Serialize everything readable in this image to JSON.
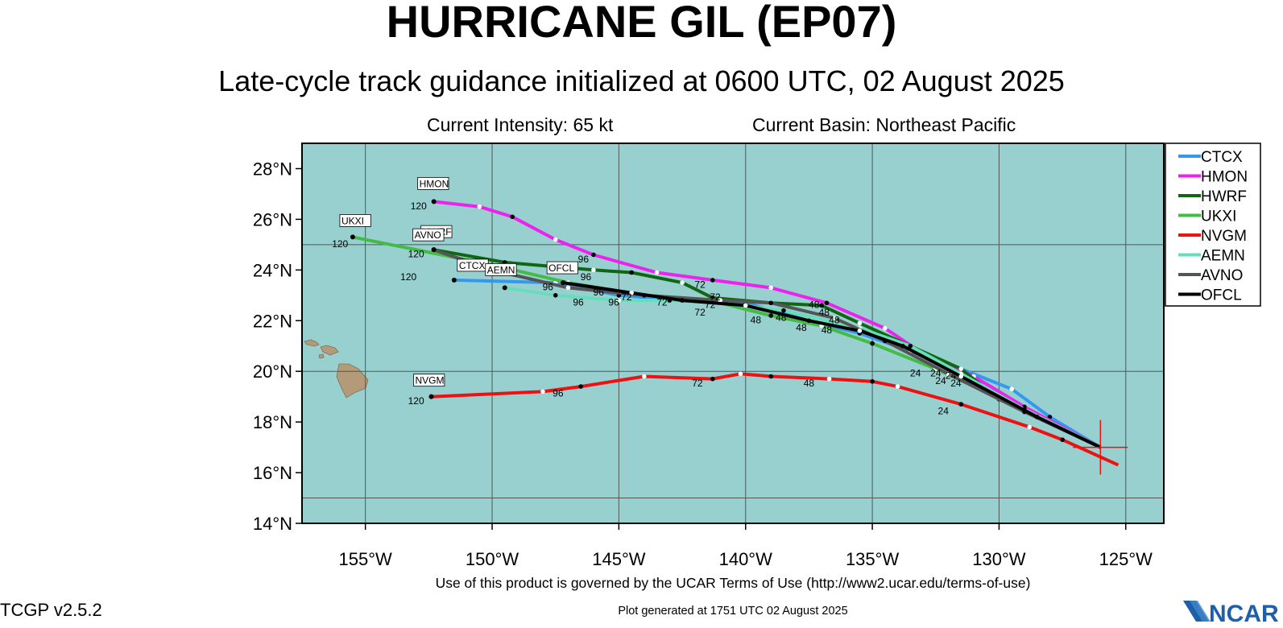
{
  "title": "HURRICANE GIL (EP07)",
  "subtitle": "Late-cycle track guidance initialized at 0600 UTC, 02 August 2025",
  "current_intensity": "Current Intensity: 65 kt",
  "current_basin": "Current Basin: Northeast Pacific",
  "footer": {
    "terms": "Use of this product is governed by the UCAR Terms of Use (http://www2.ucar.edu/terms-of-use)",
    "generated": "Plot generated at 1751 UTC   02 August 2025",
    "version": "TCGP v2.5.2",
    "logo_text": "NCAR"
  },
  "colors": {
    "ocean": "#98cfcf",
    "land": "#b39b7a",
    "grid": "#555555"
  },
  "map": {
    "lon_range": [
      -157.5,
      -123.5
    ],
    "lat_range": [
      14,
      29
    ],
    "lat_ticks": [
      {
        "v": 14,
        "label": "14°N"
      },
      {
        "v": 16,
        "label": "16°N"
      },
      {
        "v": 18,
        "label": "18°N"
      },
      {
        "v": 20,
        "label": "20°N"
      },
      {
        "v": 22,
        "label": "22°N"
      },
      {
        "v": 24,
        "label": "24°N"
      },
      {
        "v": 26,
        "label": "26°N"
      },
      {
        "v": 28,
        "label": "28°N"
      }
    ],
    "lon_ticks": [
      {
        "v": -155,
        "label": "155°W"
      },
      {
        "v": -150,
        "label": "150°W"
      },
      {
        "v": -145,
        "label": "145°W"
      },
      {
        "v": -140,
        "label": "140°W"
      },
      {
        "v": -135,
        "label": "135°W"
      },
      {
        "v": -130,
        "label": "130°W"
      },
      {
        "v": -125,
        "label": "125°W"
      }
    ],
    "storm_position": [
      -126.0,
      17.0
    ]
  },
  "chart_data": {
    "type": "line",
    "series": [
      {
        "name": "CTCX",
        "color": "#3399ee",
        "points": [
          [
            -126,
            17
          ],
          [
            -128,
            18.2
          ],
          [
            -129.5,
            19.3
          ],
          [
            -131.5,
            20.1
          ],
          [
            -133.5,
            20.8
          ],
          [
            -135.5,
            21.5
          ],
          [
            -137.5,
            22.0
          ],
          [
            -140,
            22.7
          ],
          [
            -142.5,
            22.8
          ],
          [
            -145,
            23.0
          ],
          [
            -147.5,
            23.5
          ],
          [
            -151.5,
            23.6
          ]
        ],
        "end_label": "CTCX"
      },
      {
        "name": "HMON",
        "color": "#ee22ee",
        "points": [
          [
            -126,
            17
          ],
          [
            -129,
            18.6
          ],
          [
            -131,
            19.8
          ],
          [
            -133,
            20.7
          ],
          [
            -134.5,
            21.7
          ],
          [
            -136.8,
            22.7
          ],
          [
            -139,
            23.3
          ],
          [
            -141.3,
            23.6
          ],
          [
            -143.5,
            23.9
          ],
          [
            -146,
            24.6
          ],
          [
            -147.5,
            25.2
          ],
          [
            -149.2,
            26.1
          ],
          [
            -150.5,
            26.5
          ],
          [
            -152.3,
            26.7
          ]
        ],
        "end_label": "HMON",
        "labels": [
          {
            "t": "120",
            "at": [
              -152.9,
              26.4
            ]
          },
          {
            "t": "96",
            "at": [
              -146.4,
              24.3
            ]
          },
          {
            "t": "72",
            "at": [
              -141.8,
              23.3
            ]
          },
          {
            "t": "48",
            "at": [
              -137.3,
              22.5
            ]
          }
        ]
      },
      {
        "name": "HWRF",
        "color": "#116611",
        "points": [
          [
            -126,
            17
          ],
          [
            -130,
            18.9
          ],
          [
            -131.5,
            20.1
          ],
          [
            -133.5,
            21.0
          ],
          [
            -135.5,
            21.9
          ],
          [
            -137,
            22.6
          ],
          [
            -139,
            22.7
          ],
          [
            -141.3,
            22.9
          ],
          [
            -142.5,
            23.5
          ],
          [
            -144.5,
            23.9
          ],
          [
            -146,
            24.0
          ],
          [
            -149.5,
            24.3
          ],
          [
            -152.3,
            24.8
          ]
        ],
        "end_label": "HWRF"
      },
      {
        "name": "UKXI",
        "color": "#44bb44",
        "points": [
          [
            -126,
            17
          ],
          [
            -129,
            18.5
          ],
          [
            -132.5,
            20.1
          ],
          [
            -135,
            21.1
          ],
          [
            -137,
            21.8
          ],
          [
            -139,
            22.2
          ],
          [
            -141,
            22.7
          ],
          [
            -144,
            23.0
          ],
          [
            -147,
            23.5
          ],
          [
            -150,
            24.2
          ],
          [
            -155.5,
            25.3
          ]
        ],
        "end_label": "UKXI",
        "labels": [
          {
            "t": "120",
            "at": [
              -156,
              24.9
            ]
          }
        ]
      },
      {
        "name": "NVGM",
        "color": "#ee1111",
        "points": [
          [
            -125.3,
            16.3
          ],
          [
            -127.5,
            17.3
          ],
          [
            -128.8,
            17.8
          ],
          [
            -131.5,
            18.7
          ],
          [
            -134,
            19.4
          ],
          [
            -135,
            19.6
          ],
          [
            -136.7,
            19.7
          ],
          [
            -139,
            19.8
          ],
          [
            -140.2,
            19.9
          ],
          [
            -141.3,
            19.7
          ],
          [
            -144,
            19.8
          ],
          [
            -146.5,
            19.4
          ],
          [
            -148,
            19.2
          ],
          [
            -152.4,
            19.0
          ]
        ],
        "end_label": "NVGM",
        "labels": [
          {
            "t": "120",
            "at": [
              -153,
              18.7
            ]
          },
          {
            "t": "96",
            "at": [
              -147.4,
              19.0
            ]
          },
          {
            "t": "72",
            "at": [
              -141.9,
              19.4
            ]
          },
          {
            "t": "48",
            "at": [
              -137.5,
              19.4
            ]
          },
          {
            "t": "24",
            "at": [
              -132.2,
              18.3
            ]
          }
        ]
      },
      {
        "name": "AEMN",
        "color": "#66ddbb",
        "points": [
          [
            -126,
            17
          ],
          [
            -129,
            18.5
          ],
          [
            -131.5,
            19.9
          ],
          [
            -133.5,
            21.0
          ],
          [
            -135.5,
            21.7
          ],
          [
            -138.5,
            22.4
          ],
          [
            -141,
            22.7
          ],
          [
            -143,
            22.8
          ],
          [
            -145,
            22.8
          ],
          [
            -147.5,
            23.0
          ],
          [
            -149.5,
            23.3
          ]
        ],
        "end_label": "AEMN",
        "labels": [
          {
            "t": "120",
            "at": [
              -153.3,
              23.6
            ]
          }
        ]
      },
      {
        "name": "AVNO",
        "color": "#555555",
        "points": [
          [
            -126,
            17
          ],
          [
            -129,
            18.4
          ],
          [
            -132,
            19.9
          ],
          [
            -134.5,
            21.2
          ],
          [
            -136.5,
            22.1
          ],
          [
            -139,
            22.7
          ],
          [
            -141,
            22.8
          ],
          [
            -144,
            23.0
          ],
          [
            -147,
            23.3
          ],
          [
            -150,
            24.0
          ],
          [
            -152.3,
            24.8
          ]
        ],
        "end_label": "AVNO",
        "labels": [
          {
            "t": "120",
            "at": [
              -153,
              24.5
            ]
          }
        ]
      },
      {
        "name": "OFCL",
        "color": "#000000",
        "points": [
          [
            -126,
            17
          ],
          [
            -128.5,
            18.2
          ],
          [
            -131.5,
            19.8
          ],
          [
            -133.8,
            21.0
          ],
          [
            -135.5,
            21.6
          ],
          [
            -137.5,
            22.0
          ],
          [
            -140,
            22.6
          ],
          [
            -142.5,
            22.8
          ],
          [
            -144.5,
            23.1
          ],
          [
            -147.2,
            23.5
          ]
        ],
        "end_label": "OFCL",
        "labels": [
          {
            "t": "96",
            "at": [
              -147.8,
              23.2
            ]
          },
          {
            "t": "72",
            "at": [
              -144.7,
              22.8
            ]
          },
          {
            "t": "48",
            "at": [
              -138.6,
              22.0
            ]
          },
          {
            "t": "24",
            "at": [
              -132.5,
              19.8
            ]
          }
        ]
      }
    ],
    "extra_labels": [
      {
        "t": "96",
        "at": [
          -149.6,
          23.9
        ]
      },
      {
        "t": "96",
        "at": [
          -146.3,
          23.6
        ]
      },
      {
        "t": "96",
        "at": [
          -145.8,
          23.0
        ]
      },
      {
        "t": "96",
        "at": [
          -146.6,
          22.6
        ]
      },
      {
        "t": "96",
        "at": [
          -145.2,
          22.6
        ]
      },
      {
        "t": "72",
        "at": [
          -143.3,
          22.6
        ]
      },
      {
        "t": "72",
        "at": [
          -141.8,
          22.2
        ]
      },
      {
        "t": "72",
        "at": [
          -141.4,
          22.5
        ]
      },
      {
        "t": "72",
        "at": [
          -141.2,
          22.8
        ]
      },
      {
        "t": "48",
        "at": [
          -139.6,
          21.9
        ]
      },
      {
        "t": "48",
        "at": [
          -137.8,
          21.6
        ]
      },
      {
        "t": "48",
        "at": [
          -136.8,
          21.5
        ]
      },
      {
        "t": "48",
        "at": [
          -136.5,
          21.9
        ]
      },
      {
        "t": "48",
        "at": [
          -136.9,
          22.2
        ]
      },
      {
        "t": "24",
        "at": [
          -133.3,
          19.8
        ]
      },
      {
        "t": "24",
        "at": [
          -132.3,
          19.5
        ]
      },
      {
        "t": "24",
        "at": [
          -131.9,
          19.7
        ]
      },
      {
        "t": "24",
        "at": [
          -131.7,
          19.4
        ]
      }
    ],
    "legend": [
      "CTCX",
      "HMON",
      "HWRF",
      "UKXI",
      "NVGM",
      "AEMN",
      "AVNO",
      "OFCL"
    ],
    "legend_placement": "right"
  }
}
